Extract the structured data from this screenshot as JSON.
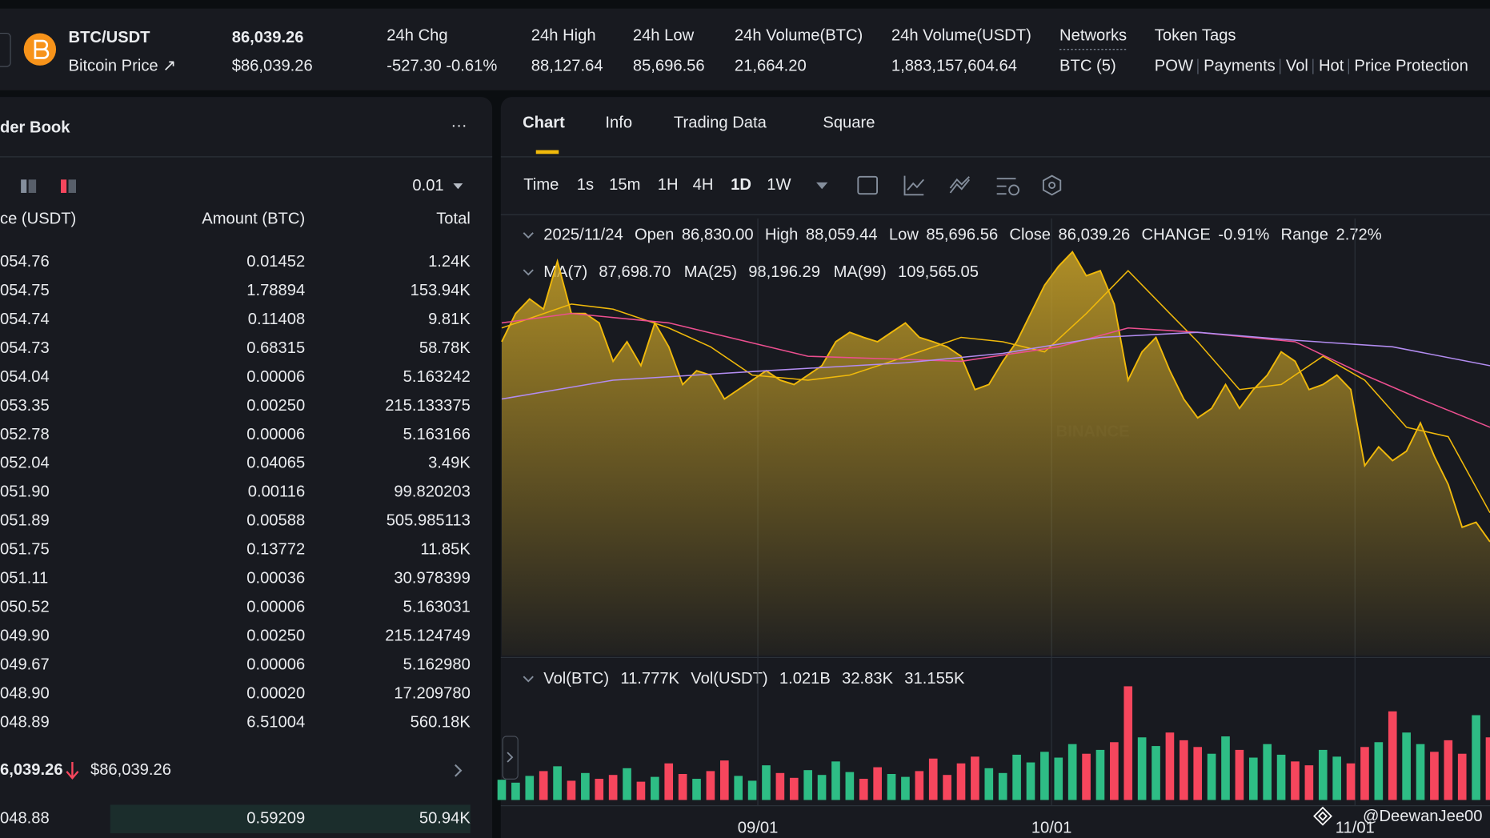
{
  "header": {
    "pair": "BTC/USDT",
    "subtitle": "Bitcoin Price ↗",
    "price": "86,039.26",
    "price_usd": "$86,039.26",
    "stats": [
      {
        "label": "24h Chg",
        "value": "-527.30 -0.61%"
      },
      {
        "label": "24h High",
        "value": "88,127.64"
      },
      {
        "label": "24h Low",
        "value": "85,696.56"
      },
      {
        "label": "24h Volume(BTC)",
        "value": "21,664.20"
      },
      {
        "label": "24h Volume(USDT)",
        "value": "1,883,157,604.64"
      },
      {
        "label": "Networks",
        "value": "BTC (5)"
      }
    ],
    "token_tags_label": "Token Tags",
    "token_tags": [
      "POW",
      "Payments",
      "Vol",
      "Hot",
      "Price Protection"
    ]
  },
  "order_book": {
    "title": "der Book",
    "menu": "···",
    "precision": "0.01",
    "columns": [
      "ce (USDT)",
      "Amount (BTC)",
      "Total"
    ],
    "asks": [
      [
        "054.76",
        "0.01452",
        "1.24K"
      ],
      [
        "054.75",
        "1.78894",
        "153.94K"
      ],
      [
        "054.74",
        "0.11408",
        "9.81K"
      ],
      [
        "054.73",
        "0.68315",
        "58.78K"
      ],
      [
        "054.04",
        "0.00006",
        "5.163242"
      ],
      [
        "053.35",
        "0.00250",
        "215.133375"
      ],
      [
        "052.78",
        "0.00006",
        "5.163166"
      ],
      [
        "052.04",
        "0.04065",
        "3.49K"
      ],
      [
        "051.90",
        "0.00116",
        "99.820203"
      ],
      [
        "051.89",
        "0.00588",
        "505.985113"
      ],
      [
        "051.75",
        "0.13772",
        "11.85K"
      ],
      [
        "051.11",
        "0.00036",
        "30.978399"
      ],
      [
        "050.52",
        "0.00006",
        "5.163031"
      ],
      [
        "049.90",
        "0.00250",
        "215.124749"
      ],
      [
        "049.67",
        "0.00006",
        "5.162980"
      ],
      [
        "048.90",
        "0.00020",
        "17.209780"
      ],
      [
        "048.89",
        "6.51004",
        "560.18K"
      ]
    ],
    "last_price": "6,039.26",
    "last_price_usd": "$86,039.26",
    "bids": [
      [
        "048.88",
        "0.59209",
        "50.94K"
      ]
    ]
  },
  "tabs": [
    "Chart",
    "Info",
    "Trading Data",
    "Square"
  ],
  "intervals": [
    "Time",
    "1s",
    "15m",
    "1H",
    "4H",
    "1D",
    "1W"
  ],
  "ohlc_legend": {
    "date": "2025/11/24",
    "items": [
      {
        "label": "Open",
        "value": "86,830.00"
      },
      {
        "label": "High",
        "value": "88,059.44"
      },
      {
        "label": "Low",
        "value": "85,696.56"
      },
      {
        "label": "Close",
        "value": "86,039.26"
      },
      {
        "label": "CHANGE",
        "value": "-0.91%"
      },
      {
        "label": "Range",
        "value": "2.72%"
      }
    ]
  },
  "ma_legend": [
    {
      "label": "MA(7)",
      "value": "87,698.70"
    },
    {
      "label": "MA(25)",
      "value": "98,196.29"
    },
    {
      "label": "MA(99)",
      "value": "109,565.05"
    }
  ],
  "vol_legend": [
    {
      "text": "Vol(BTC)",
      "color": "#848e9c"
    },
    {
      "text": "11.777K",
      "color": "#eaecef"
    },
    {
      "text": "Vol(USDT)",
      "color": "#848e9c"
    },
    {
      "text": "1.021B",
      "color": "#eaecef"
    },
    {
      "text": "32.83K",
      "color": "#6fc0e0"
    },
    {
      "text": "31.155K",
      "color": "#eb4f8f"
    }
  ],
  "watermark": "BINANCE",
  "credit": "@DeewanJee00",
  "chart_data": {
    "type": "area",
    "xlim": [
      0,
      71
    ],
    "ylim": [
      70300,
      130600
    ],
    "xticks": [
      {
        "value": 18.4,
        "label": "09/01"
      },
      {
        "value": 39.5,
        "label": "10/01"
      },
      {
        "value": 61.3,
        "label": "11/01"
      }
    ],
    "series": [
      {
        "name": "Price",
        "color": "#f0b90b",
        "x": [
          0,
          1,
          2,
          3,
          4,
          5,
          6,
          7,
          8,
          9,
          10,
          11,
          12,
          13,
          14,
          15,
          16,
          17,
          18,
          19,
          20,
          21,
          22,
          23,
          24,
          25,
          26,
          27,
          28,
          29,
          30,
          31,
          32,
          33,
          34,
          35,
          36,
          37,
          38,
          39,
          40,
          41,
          42,
          43,
          44,
          45,
          46,
          47,
          48,
          49,
          50,
          51,
          52,
          53,
          54,
          55,
          56,
          57,
          58,
          59,
          60,
          61,
          62,
          63,
          64,
          65,
          66,
          67,
          68,
          69,
          70,
          71
        ],
        "values": [
          113600,
          117500,
          119500,
          118100,
          124700,
          117500,
          117500,
          116200,
          110900,
          113600,
          110300,
          116200,
          112900,
          107700,
          109600,
          109000,
          105700,
          107000,
          108300,
          109600,
          108300,
          107700,
          109000,
          110300,
          113600,
          114900,
          114200,
          113600,
          114900,
          116200,
          114200,
          113600,
          112900,
          111600,
          107000,
          107700,
          110900,
          113600,
          117500,
          121400,
          124000,
          126000,
          122700,
          123400,
          118800,
          108300,
          112200,
          114200,
          109600,
          105700,
          103100,
          104400,
          107700,
          104400,
          107000,
          109000,
          112200,
          110900,
          107000,
          107700,
          109000,
          107000,
          96500,
          99100,
          97200,
          98500,
          102400,
          97800,
          93900,
          88000,
          88700,
          86000
        ]
      },
      {
        "name": "MA(7)",
        "color": "#f0b90b",
        "x": [
          0,
          5,
          8,
          12,
          15,
          18,
          22,
          25,
          28,
          30,
          33,
          36,
          39,
          42,
          45,
          48,
          50,
          53,
          56,
          59,
          62,
          65,
          68,
          71
        ],
        "values": [
          115500,
          118800,
          118100,
          115500,
          112900,
          109000,
          108300,
          109000,
          110900,
          112200,
          114200,
          113600,
          112200,
          117500,
          123400,
          117500,
          113600,
          107000,
          107700,
          111600,
          108300,
          101800,
          100500,
          90000
        ]
      },
      {
        "name": "MA(25)",
        "color": "#eb4f8f",
        "x": [
          0,
          5,
          12,
          22,
          33,
          40,
          45,
          50,
          57,
          62,
          66,
          71
        ],
        "values": [
          116200,
          117500,
          116200,
          111600,
          110900,
          112900,
          115500,
          114900,
          113600,
          109000,
          105700,
          101800
        ]
      },
      {
        "name": "MA(99)",
        "color": "#b28cf0",
        "x": [
          0,
          8,
          19,
          29,
          36,
          43,
          50,
          57,
          64,
          71
        ],
        "values": [
          105700,
          108300,
          109600,
          110700,
          112000,
          114200,
          114900,
          113800,
          112900,
          110300
        ]
      }
    ],
    "volume": {
      "type": "bar",
      "ylim": [
        0,
        140000
      ],
      "up_color": "#2ebd85",
      "down_color": "#f6465d",
      "values": [
        21000,
        18000,
        25000,
        30000,
        35000,
        20000,
        28000,
        22000,
        26000,
        33000,
        19000,
        24000,
        38000,
        27000,
        22000,
        30000,
        41000,
        25000,
        20000,
        36000,
        28000,
        23000,
        31000,
        26000,
        40000,
        29000,
        22000,
        34000,
        27000,
        24000,
        30000,
        43000,
        26000,
        38000,
        45000,
        33000,
        28000,
        47000,
        39000,
        50000,
        44000,
        58000,
        48000,
        52000,
        60000,
        118000,
        65000,
        56000,
        70000,
        62000,
        55000,
        48000,
        66000,
        52000,
        44000,
        58000,
        47000,
        40000,
        36000,
        52000,
        45000,
        38000,
        55000,
        60000,
        92000,
        70000,
        58000,
        50000,
        62000,
        48000,
        88000,
        65000
      ]
    }
  }
}
